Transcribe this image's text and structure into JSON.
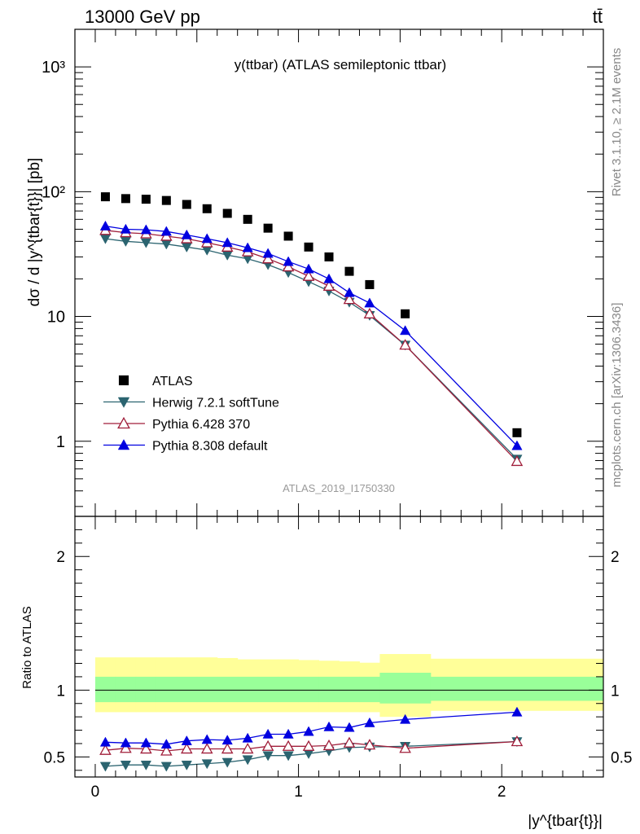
{
  "header": {
    "energy_label": "13000 GeV pp",
    "process_label": "tt̄"
  },
  "side_labels": {
    "rivet": "Rivet 3.1.10, ≥ 2.1M events",
    "mcplots": "mcplots.cern.ch [arXiv:1306.3436]"
  },
  "chart_data": [
    {
      "type": "scatter",
      "title": "y(ttbar) (ATLAS semileptonic ttbar)",
      "watermark": "ATLAS_2019_I1750330",
      "ylabel": "dσ / d |y^{tbar{t}}| [pb]",
      "yscale": "log",
      "xlim": [
        -0.1,
        2.5
      ],
      "ylim": [
        0.25,
        2000
      ],
      "y_tick_labels": [
        "1",
        "10",
        "10²",
        "10³"
      ],
      "x": [
        0.05,
        0.15,
        0.25,
        0.35,
        0.45,
        0.55,
        0.65,
        0.75,
        0.85,
        0.95,
        1.05,
        1.15,
        1.25,
        1.35,
        1.525,
        2.075
      ],
      "series": [
        {
          "name": "ATLAS",
          "marker": "square",
          "color": "#000000",
          "line": false,
          "values": [
            91,
            88,
            87,
            85,
            79,
            73,
            67,
            60,
            51,
            44,
            36,
            30,
            23,
            18,
            10.5,
            1.17
          ]
        },
        {
          "name": "Herwig 7.2.1 softTune",
          "marker": "triangle-down",
          "color": "#2b6470",
          "line": true,
          "values": [
            42,
            40,
            39,
            38,
            36,
            34,
            31,
            29,
            26,
            22.5,
            19,
            16,
            13,
            10.2,
            5.9,
            0.72
          ]
        },
        {
          "name": "Pythia 6.428 370",
          "marker": "triangle-up-open",
          "color": "#a01e3a",
          "line": true,
          "values": [
            49,
            47,
            46,
            44,
            42,
            39,
            36,
            33,
            29,
            25,
            21,
            17.5,
            13.7,
            10.5,
            5.9,
            0.69
          ]
        },
        {
          "name": "Pythia 8.308 default",
          "marker": "triangle-up",
          "color": "#0000e0",
          "line": true,
          "values": [
            53,
            50,
            49.5,
            48,
            45,
            42,
            39,
            35.5,
            32,
            27.5,
            24,
            20,
            15.5,
            12.8,
            7.7,
            0.92
          ]
        }
      ]
    },
    {
      "type": "scatter",
      "ylabel": "Ratio to ATLAS",
      "xlabel": "|y^{tbar{t}}|",
      "xlim": [
        -0.1,
        2.5
      ],
      "ylim": [
        0.35,
        2.3
      ],
      "x_tick_labels": [
        "0",
        "1",
        "2"
      ],
      "y_tick_labels": [
        "0.5",
        "1",
        "2"
      ],
      "band_edges": [
        0.0,
        0.1,
        0.2,
        0.3,
        0.4,
        0.5,
        0.6,
        0.7,
        0.8,
        0.9,
        1.0,
        1.1,
        1.2,
        1.3,
        1.4,
        1.65,
        2.5
      ],
      "bands": [
        {
          "name": "stat_syst",
          "color": "#ffff99",
          "lower": [
            0.835,
            0.835,
            0.835,
            0.835,
            0.835,
            0.835,
            0.835,
            0.835,
            0.835,
            0.835,
            0.835,
            0.835,
            0.835,
            0.835,
            0.8,
            0.845
          ],
          "upper": [
            1.245,
            1.245,
            1.245,
            1.245,
            1.245,
            1.245,
            1.24,
            1.23,
            1.23,
            1.23,
            1.225,
            1.22,
            1.215,
            1.205,
            1.27,
            1.235
          ]
        },
        {
          "name": "stat",
          "color": "#99ff99",
          "lower": [
            0.91,
            0.91,
            0.91,
            0.91,
            0.91,
            0.91,
            0.91,
            0.91,
            0.91,
            0.91,
            0.91,
            0.91,
            0.91,
            0.91,
            0.9,
            0.92
          ],
          "upper": [
            1.1,
            1.1,
            1.1,
            1.1,
            1.1,
            1.1,
            1.1,
            1.1,
            1.1,
            1.1,
            1.1,
            1.1,
            1.1,
            1.1,
            1.13,
            1.1
          ]
        }
      ],
      "reference_line": 1,
      "x": [
        0.05,
        0.15,
        0.25,
        0.35,
        0.45,
        0.55,
        0.65,
        0.75,
        0.85,
        0.95,
        1.05,
        1.15,
        1.25,
        1.35,
        1.525,
        2.075
      ],
      "series": [
        {
          "name": "Herwig 7.2.1 softTune",
          "marker": "triangle-down",
          "color": "#2b6470",
          "values": [
            0.43,
            0.44,
            0.44,
            0.43,
            0.44,
            0.45,
            0.46,
            0.48,
            0.51,
            0.51,
            0.525,
            0.545,
            0.57,
            0.575,
            0.58,
            0.615
          ]
        },
        {
          "name": "Pythia 6.428 370",
          "marker": "triangle-up-open",
          "color": "#a01e3a",
          "values": [
            0.55,
            0.565,
            0.56,
            0.545,
            0.56,
            0.56,
            0.56,
            0.56,
            0.58,
            0.58,
            0.58,
            0.585,
            0.605,
            0.59,
            0.565,
            0.615
          ]
        },
        {
          "name": "Pythia 8.308 default",
          "marker": "triangle-up",
          "color": "#0000e0",
          "values": [
            0.61,
            0.605,
            0.605,
            0.595,
            0.62,
            0.63,
            0.625,
            0.64,
            0.67,
            0.67,
            0.69,
            0.725,
            0.72,
            0.755,
            0.78,
            0.835
          ]
        }
      ]
    }
  ]
}
